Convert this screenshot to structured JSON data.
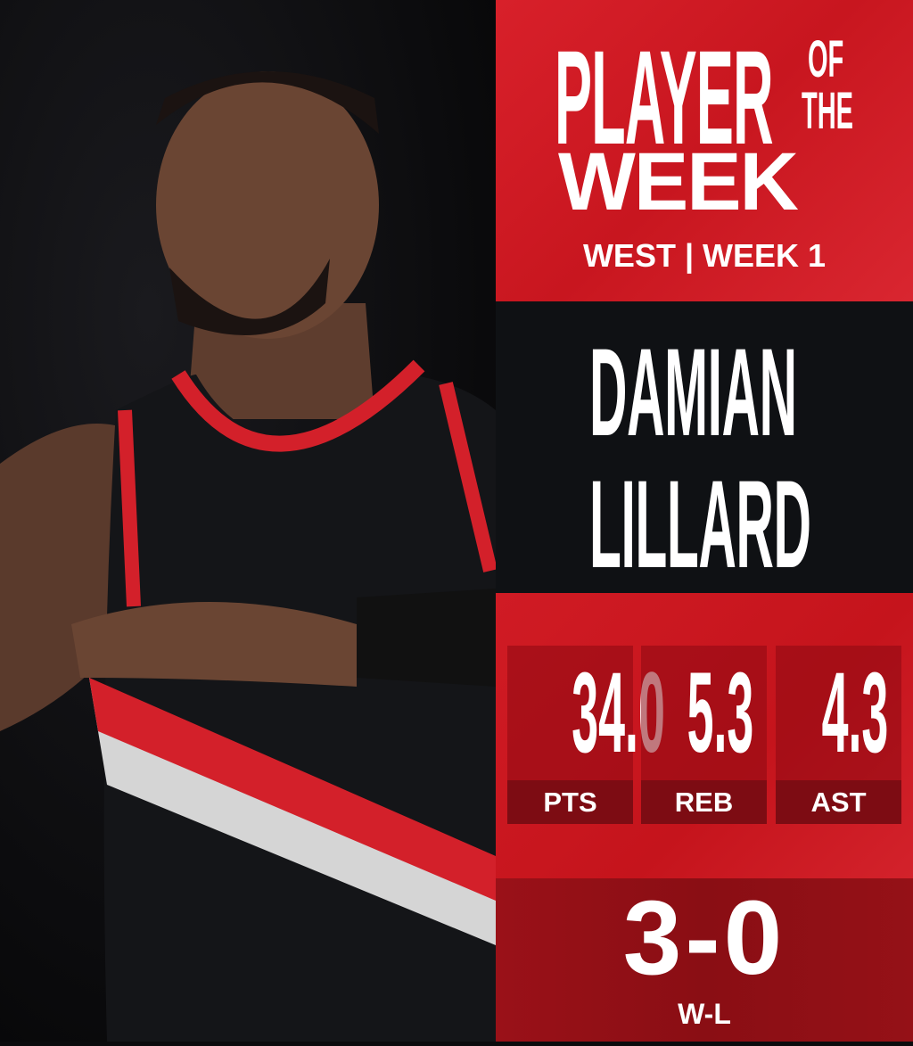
{
  "header": {
    "line1": "PLAYER",
    "of": "OF",
    "the": "THE",
    "line2": "WEEK",
    "subtitle": "WEST | WEEK 1"
  },
  "player": {
    "first_name": "DAMIAN",
    "last_name": "LILLARD"
  },
  "stats": [
    {
      "value": "34.0",
      "label": "PTS"
    },
    {
      "value": "5.3",
      "label": "REB"
    },
    {
      "value": "4.3",
      "label": "AST"
    }
  ],
  "record": {
    "value": "3-0",
    "label": "W-L"
  },
  "colors": {
    "red": "#d01b24",
    "dark_red": "#8a0e14",
    "black": "#0f1114",
    "white": "#ffffff"
  }
}
